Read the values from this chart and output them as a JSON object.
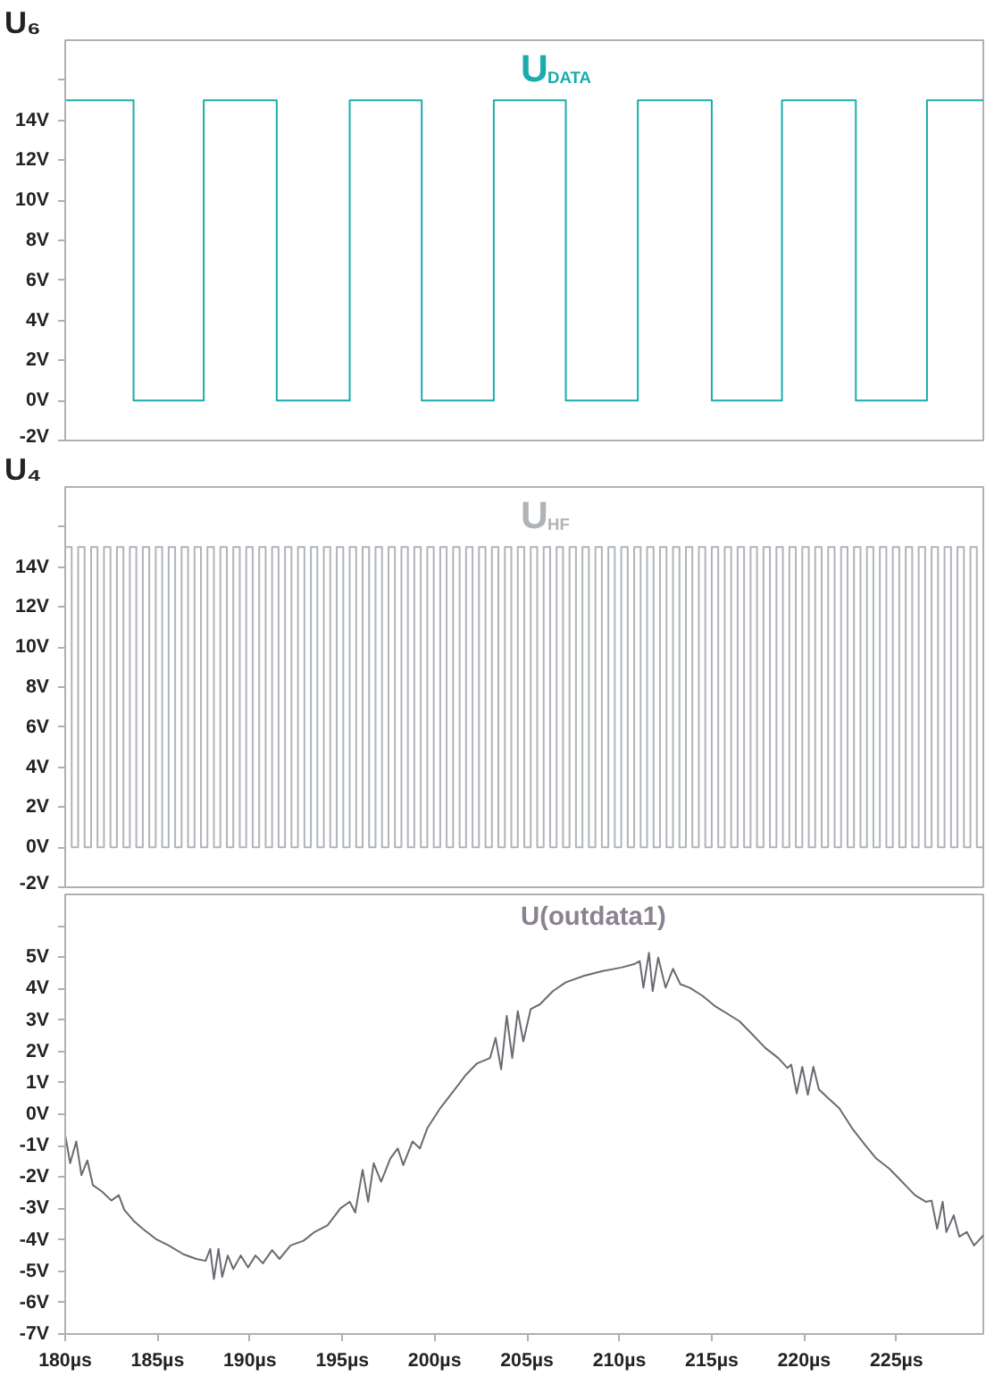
{
  "chart_data": [
    {
      "type": "step",
      "title": "U$_{DATA}$",
      "ylabel": "U₆",
      "xlim": [
        180,
        229.7
      ],
      "ylim": [
        -2,
        18
      ],
      "yticks": [
        {
          "value": -2,
          "label": "-2V"
        },
        {
          "value": 0,
          "label": "0V"
        },
        {
          "value": 2,
          "label": "2V"
        },
        {
          "value": 4,
          "label": "4V"
        },
        {
          "value": 6,
          "label": "6V"
        },
        {
          "value": 8,
          "label": "8V"
        },
        {
          "value": 10,
          "label": "10V"
        },
        {
          "value": 12,
          "label": "12V"
        },
        {
          "value": 14,
          "label": "14V"
        },
        {
          "value": 16,
          "label": null
        }
      ],
      "tick_labels": "y",
      "grid": false,
      "series": [
        {
          "color": "#1aacac",
          "x": [
            180,
            183.7,
            187.5,
            191.45,
            195.4,
            199.3,
            203.2,
            207.1,
            211.0,
            215.0,
            218.8,
            222.8,
            226.65,
            229.7
          ],
          "values": [
            15,
            0,
            15,
            0,
            15,
            0,
            15,
            0,
            15,
            0,
            15,
            0,
            15,
            15
          ]
        }
      ]
    },
    {
      "type": "step",
      "title": "U$_{HF}$",
      "ylabel": "U₄",
      "xlim": [
        180,
        229.7
      ],
      "ylim": [
        -2,
        18
      ],
      "yticks": [
        {
          "value": -2,
          "label": "-2V"
        },
        {
          "value": 0,
          "label": "0V"
        },
        {
          "value": 2,
          "label": "2V"
        },
        {
          "value": 4,
          "label": "4V"
        },
        {
          "value": 6,
          "label": "6V"
        },
        {
          "value": 8,
          "label": "8V"
        },
        {
          "value": 10,
          "label": "10V"
        },
        {
          "value": 12,
          "label": "12V"
        },
        {
          "value": 14,
          "label": "14V"
        },
        {
          "value": 16,
          "label": null
        }
      ],
      "tick_labels": "y",
      "grid": false,
      "series": [
        {
          "color": "#b0b4b8",
          "x": [
            180,
            180.35,
            180.7,
            181.05,
            181.4,
            181.75,
            182.1,
            182.45,
            182.8,
            183.15,
            183.5,
            183.85,
            184.2,
            184.55,
            184.9,
            185.25,
            185.6,
            185.95,
            186.3,
            186.65,
            187,
            187.35,
            187.7,
            188.05,
            188.4,
            188.75,
            189.1,
            189.45,
            189.8,
            190.15,
            190.5,
            190.85,
            191.2,
            191.55,
            191.9,
            192.25,
            192.6,
            192.95,
            193.3,
            193.65,
            194,
            194.35,
            194.7,
            195.05,
            195.4,
            195.75,
            196.1,
            196.45,
            196.8,
            197.15,
            197.5,
            197.85,
            198.2,
            198.55,
            198.9,
            199.25,
            199.6,
            199.95,
            200.3,
            200.65,
            201,
            201.35,
            201.7,
            202.05,
            202.4,
            202.75,
            203.1,
            203.45,
            203.8,
            204.15,
            204.5,
            204.85,
            205.2,
            205.55,
            205.9,
            206.25,
            206.6,
            206.95,
            207.3,
            207.65,
            208,
            208.35,
            208.7,
            209.05,
            209.4,
            209.75,
            210.1,
            210.45,
            210.8,
            211.15,
            211.5,
            211.85,
            212.2,
            212.55,
            212.9,
            213.25,
            213.6,
            213.95,
            214.3,
            214.65,
            215,
            215.35,
            215.7,
            216.05,
            216.4,
            216.75,
            217.1,
            217.45,
            217.8,
            218.15,
            218.5,
            218.85,
            219.2,
            219.55,
            219.9,
            220.25,
            220.6,
            220.95,
            221.3,
            221.65,
            222,
            222.35,
            222.7,
            223.05,
            223.4,
            223.75,
            224.1,
            224.45,
            224.8,
            225.15,
            225.5,
            225.85,
            226.2,
            226.55,
            226.9,
            227.25,
            227.6,
            227.95,
            228.3,
            228.65,
            229,
            229.35,
            229.7
          ],
          "values": [
            15,
            0,
            15,
            0,
            15,
            0,
            15,
            0,
            15,
            0,
            15,
            0,
            15,
            0,
            15,
            0,
            15,
            0,
            15,
            0,
            15,
            0,
            15,
            0,
            15,
            0,
            15,
            0,
            15,
            0,
            15,
            0,
            15,
            0,
            15,
            0,
            15,
            0,
            15,
            0,
            15,
            0,
            15,
            0,
            15,
            0,
            15,
            0,
            15,
            0,
            15,
            0,
            15,
            0,
            15,
            0,
            15,
            0,
            15,
            0,
            15,
            0,
            15,
            0,
            15,
            0,
            15,
            0,
            15,
            0,
            15,
            0,
            15,
            0,
            15,
            0,
            15,
            0,
            15,
            0,
            15,
            0,
            15,
            0,
            15,
            0,
            15,
            0,
            15,
            0,
            15,
            0,
            15,
            0,
            15,
            0,
            15,
            0,
            15,
            0,
            15,
            0,
            15,
            0,
            15,
            0,
            15,
            0,
            15,
            0,
            15,
            0,
            15,
            0,
            15,
            0,
            15,
            0,
            15,
            0,
            15,
            0,
            15,
            0,
            15,
            0,
            15,
            0,
            15,
            0,
            15,
            0,
            15,
            0,
            15,
            0,
            15,
            0,
            15,
            0,
            15,
            0,
            15
          ]
        }
      ]
    },
    {
      "type": "line",
      "title": "U(outdata1)",
      "xlim": [
        180,
        229.7
      ],
      "ylim": [
        -7,
        7
      ],
      "xticks": [
        {
          "value": 180,
          "label": "180µs"
        },
        {
          "value": 185,
          "label": "185µs"
        },
        {
          "value": 190,
          "label": "190µs"
        },
        {
          "value": 195,
          "label": "195µs"
        },
        {
          "value": 200,
          "label": "200µs"
        },
        {
          "value": 205,
          "label": "205µs"
        },
        {
          "value": 210,
          "label": "210µs"
        },
        {
          "value": 215,
          "label": "215µs"
        },
        {
          "value": 220,
          "label": "220µs"
        },
        {
          "value": 225,
          "label": "225µs"
        }
      ],
      "yticks": [
        {
          "value": -7,
          "label": "-7V"
        },
        {
          "value": -6,
          "label": "-6V"
        },
        {
          "value": -5,
          "label": "-5V"
        },
        {
          "value": -4,
          "label": "-4V"
        },
        {
          "value": -3,
          "label": "-3V"
        },
        {
          "value": -2,
          "label": "-2V"
        },
        {
          "value": -1,
          "label": "-1V"
        },
        {
          "value": 0,
          "label": "0V"
        },
        {
          "value": 1,
          "label": "1V"
        },
        {
          "value": 2,
          "label": "2V"
        },
        {
          "value": 3,
          "label": "3V"
        },
        {
          "value": 4,
          "label": "4V"
        },
        {
          "value": 5,
          "label": "5V"
        },
        {
          "value": 6,
          "label": null
        }
      ],
      "grid": false,
      "series": [
        {
          "color": "#6e6870",
          "x": [
            180.0,
            180.27,
            180.6,
            180.88,
            181.2,
            181.5,
            182.0,
            182.5,
            182.9,
            183.2,
            183.7,
            184.2,
            184.9,
            185.6,
            186.4,
            187.1,
            187.6,
            187.85,
            188.05,
            188.3,
            188.5,
            188.8,
            189.1,
            189.5,
            189.9,
            190.3,
            190.7,
            191.2,
            191.6,
            192.2,
            192.9,
            193.5,
            194.2,
            194.9,
            195.4,
            195.7,
            196.1,
            196.4,
            196.7,
            197.1,
            197.6,
            198.0,
            198.3,
            198.8,
            199.2,
            199.6,
            200.3,
            201.0,
            201.7,
            202.3,
            203.0,
            203.3,
            203.6,
            203.9,
            204.2,
            204.5,
            204.8,
            205.2,
            205.7,
            206.4,
            207.1,
            208.1,
            209.1,
            210.1,
            210.8,
            211.1,
            211.3,
            211.6,
            211.8,
            212.1,
            212.5,
            212.9,
            213.3,
            213.8,
            214.5,
            215.2,
            215.9,
            216.5,
            217.2,
            217.9,
            218.6,
            219.1,
            219.3,
            219.6,
            219.9,
            220.2,
            220.5,
            220.8,
            221.3,
            221.9,
            222.6,
            223.3,
            223.9,
            224.6,
            225.3,
            226.0,
            226.6,
            226.9,
            227.2,
            227.5,
            227.7,
            228.1,
            228.4,
            228.8,
            229.2,
            229.7
          ],
          "values": [
            -0.66,
            -1.56,
            -0.87,
            -1.94,
            -1.47,
            -2.26,
            -2.47,
            -2.75,
            -2.58,
            -3.05,
            -3.39,
            -3.65,
            -3.97,
            -4.18,
            -4.46,
            -4.61,
            -4.67,
            -4.29,
            -5.25,
            -4.29,
            -5.18,
            -4.5,
            -4.93,
            -4.5,
            -4.88,
            -4.5,
            -4.75,
            -4.33,
            -4.61,
            -4.18,
            -4.03,
            -3.75,
            -3.54,
            -3.0,
            -2.79,
            -3.13,
            -1.77,
            -2.79,
            -1.56,
            -2.15,
            -1.41,
            -1.09,
            -1.62,
            -0.87,
            -1.09,
            -0.45,
            0.19,
            0.72,
            1.26,
            1.62,
            1.79,
            2.43,
            1.43,
            3.13,
            1.79,
            3.28,
            2.32,
            3.35,
            3.5,
            3.92,
            4.2,
            4.41,
            4.56,
            4.67,
            4.78,
            4.88,
            4.03,
            5.14,
            3.92,
            4.99,
            4.03,
            4.63,
            4.14,
            4.03,
            3.77,
            3.43,
            3.18,
            2.96,
            2.54,
            2.11,
            1.79,
            1.47,
            1.58,
            0.66,
            1.51,
            0.62,
            1.51,
            0.79,
            0.51,
            0.19,
            -0.45,
            -0.98,
            -1.41,
            -1.73,
            -2.15,
            -2.58,
            -2.79,
            -2.75,
            -3.65,
            -2.79,
            -3.75,
            -3.22,
            -3.9,
            -3.75,
            -4.18,
            -3.86
          ]
        }
      ]
    }
  ]
}
